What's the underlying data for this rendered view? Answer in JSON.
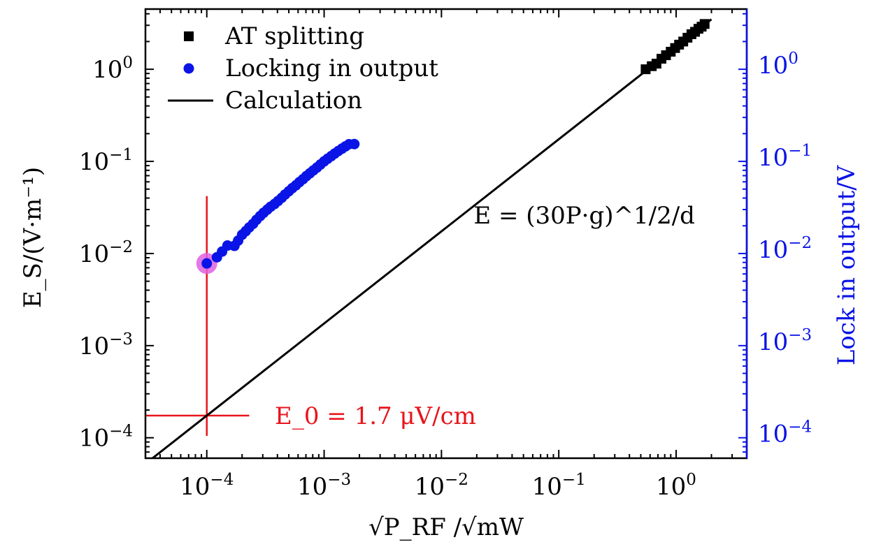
{
  "chart_data": {
    "type": "scatter",
    "scale": "log-log",
    "xlabel": "√P_RF /√mW",
    "ylabel_left": "E_S/(V·m⁻¹)",
    "ylabel_right": "Lock in output/V",
    "xlim": [
      3e-05,
      4
    ],
    "ylim_left": [
      6e-05,
      4.5
    ],
    "ylim_right": [
      6e-05,
      4.5
    ],
    "x_ticks": [
      {
        "value": 0.0001,
        "base": "10",
        "exp": "−4"
      },
      {
        "value": 0.001,
        "base": "10",
        "exp": "−3"
      },
      {
        "value": 0.01,
        "base": "10",
        "exp": "−2"
      },
      {
        "value": 0.1,
        "base": "10",
        "exp": "−1"
      },
      {
        "value": 1,
        "base": "10",
        "exp": "0"
      }
    ],
    "y_ticks_left": [
      {
        "value": 0.0001,
        "base": "10",
        "exp": "−4"
      },
      {
        "value": 0.001,
        "base": "10",
        "exp": "−3"
      },
      {
        "value": 0.01,
        "base": "10",
        "exp": "−2"
      },
      {
        "value": 0.1,
        "base": "10",
        "exp": "−1"
      },
      {
        "value": 1,
        "base": "10",
        "exp": "0"
      }
    ],
    "y_ticks_right": [
      {
        "value": 0.0001,
        "base": "10",
        "exp": "−4"
      },
      {
        "value": 0.001,
        "base": "10",
        "exp": "−3"
      },
      {
        "value": 0.01,
        "base": "10",
        "exp": "−2"
      },
      {
        "value": 0.1,
        "base": "10",
        "exp": "−1"
      },
      {
        "value": 1,
        "base": "10",
        "exp": "0"
      }
    ],
    "legend": {
      "placement": "top-left",
      "entries": [
        {
          "label": "AT splitting",
          "marker": "square",
          "color": "#000000"
        },
        {
          "label": "Locking in output",
          "marker": "circle",
          "color": "#0a14e6"
        },
        {
          "label": "Calculation",
          "marker": "line",
          "color": "#000000"
        }
      ]
    },
    "series": [
      {
        "name": "AT splitting",
        "marker": "square",
        "color": "#000000",
        "x": [
          0.55,
          0.62,
          0.68,
          0.75,
          0.82,
          0.9,
          0.98,
          1.06,
          1.15,
          1.25,
          1.35,
          1.45,
          1.55,
          1.65,
          1.75
        ],
        "y": [
          1.0,
          1.08,
          1.15,
          1.3,
          1.42,
          1.55,
          1.7,
          1.85,
          2.0,
          2.2,
          2.4,
          2.55,
          2.75,
          2.9,
          3.1
        ]
      },
      {
        "name": "Locking in output",
        "marker": "circle",
        "color": "#0a14e6",
        "x": [
          0.0001,
          0.000122,
          0.000135,
          0.00015,
          0.000172,
          0.000185,
          0.0002,
          0.000215,
          0.00023,
          0.000248,
          0.000265,
          0.000285,
          0.000305,
          0.000328,
          0.00035,
          0.000378,
          0.000405,
          0.000435,
          0.000465,
          0.0005,
          0.000535,
          0.000575,
          0.000615,
          0.00066,
          0.000705,
          0.000755,
          0.00081,
          0.000868,
          0.00093,
          0.001,
          0.00107,
          0.00115,
          0.00123,
          0.00132,
          0.00142,
          0.00152,
          0.00163,
          0.00181
        ],
        "y": [
          0.0078,
          0.0091,
          0.0105,
          0.0122,
          0.0121,
          0.0138,
          0.016,
          0.0175,
          0.0192,
          0.021,
          0.0232,
          0.0255,
          0.0277,
          0.03,
          0.0322,
          0.0345,
          0.0372,
          0.0402,
          0.0437,
          0.0474,
          0.0512,
          0.055,
          0.0595,
          0.064,
          0.0692,
          0.0742,
          0.0798,
          0.0857,
          0.0925,
          0.1,
          0.1068,
          0.114,
          0.1215,
          0.1295,
          0.1375,
          0.1455,
          0.1535,
          0.1541
        ]
      },
      {
        "name": "Calculation",
        "marker": "line",
        "color": "#000000",
        "x": [
          3e-05,
          2.0
        ],
        "y": [
          5.22e-05,
          3.48
        ]
      }
    ],
    "highlight_point": {
      "x": 0.0001,
      "y": 0.0078,
      "color": "#e060e0"
    },
    "crosshair": {
      "color": "#e8141c",
      "vertical": {
        "x": 0.0001,
        "y_from": 0.000105,
        "y_to": 0.042
      },
      "horizontal": {
        "y": 0.000174,
        "x_from": 3e-05,
        "x_to": 0.00023
      }
    },
    "annotations": [
      {
        "text": "E = (30P·g)^1/2/d",
        "x": 0.25,
        "y": 0.022,
        "color": "#000000",
        "anchor": "end"
      },
      {
        "text": "E_0 = 1.7 μV/cm",
        "x": 0.00038,
        "y": 0.000174,
        "color": "#e8141c",
        "anchor": "start"
      }
    ],
    "colors": {
      "axis": "#000000",
      "right_axis": "#0a14e6",
      "red": "#e8141c"
    }
  }
}
